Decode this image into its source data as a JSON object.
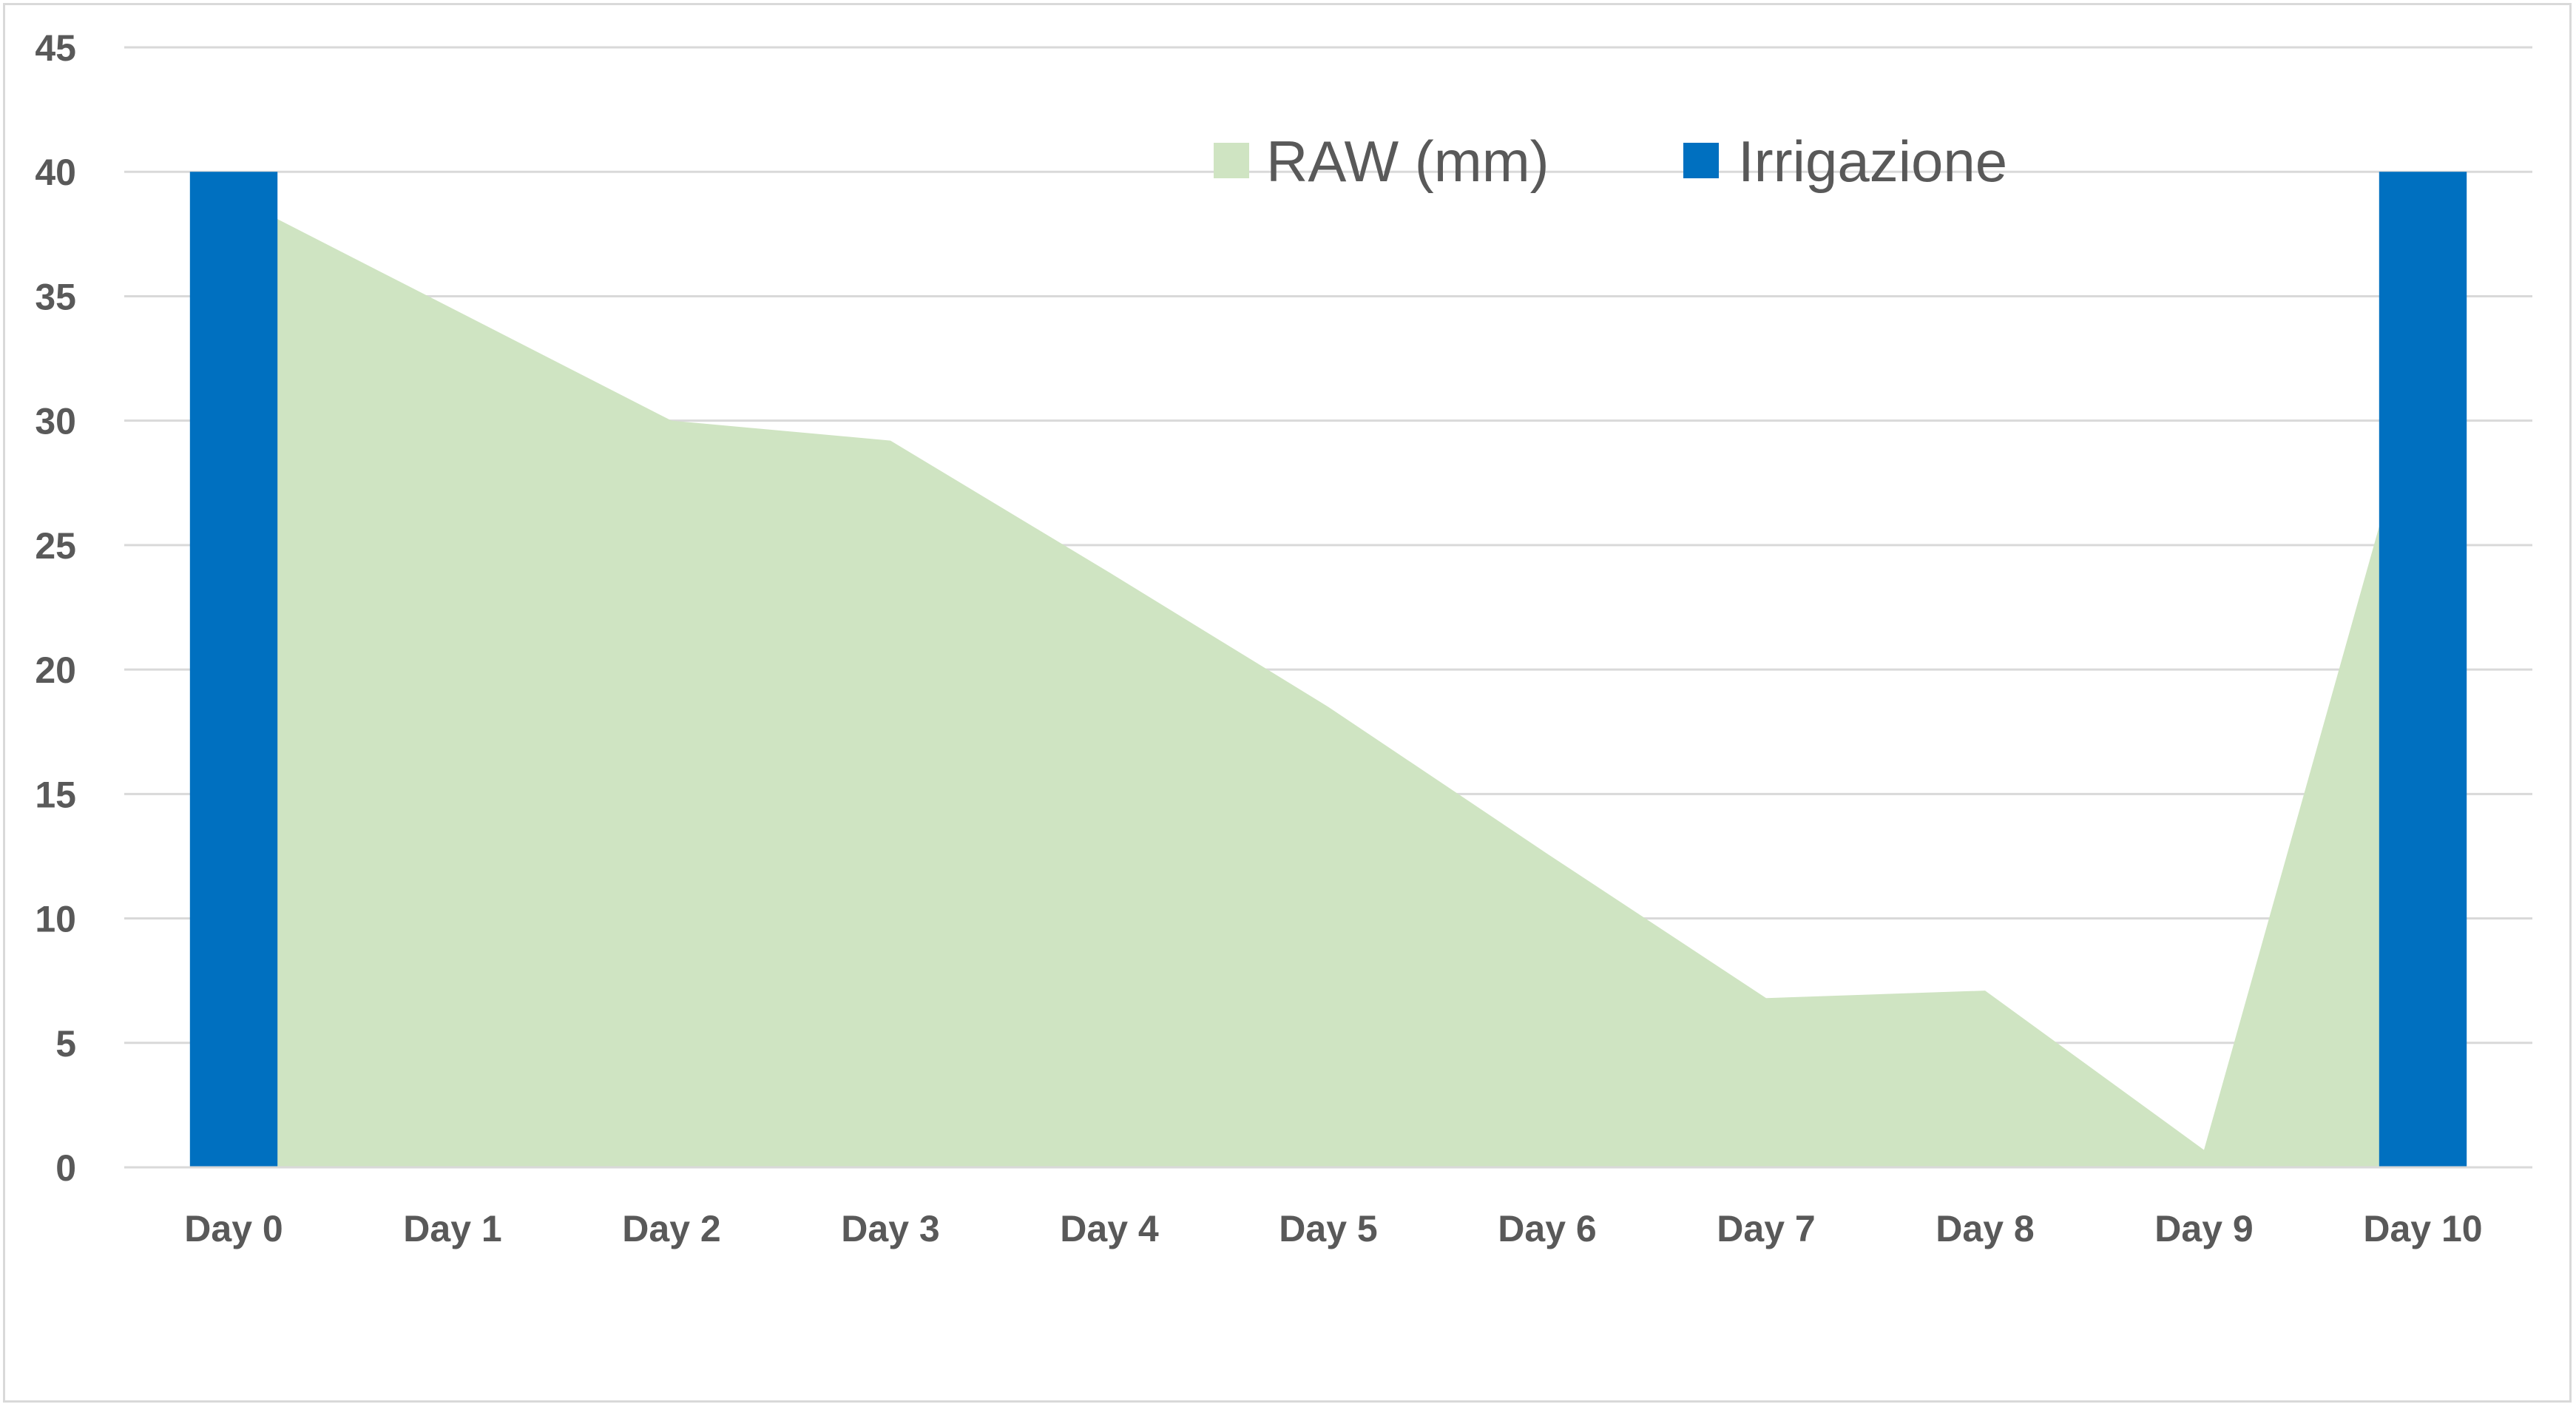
{
  "chart_data": {
    "type": "bar",
    "categories": [
      "Day 0",
      "Day 1",
      "Day 2",
      "Day 3",
      "Day 4",
      "Day 5",
      "Day 6",
      "Day 7",
      "Day 8",
      "Day 9",
      "Day 10"
    ],
    "series": [
      {
        "name": "RAW (mm)",
        "type": "area",
        "color": "#cfe4c2",
        "values": [
          39,
          34.5,
          30,
          29.2,
          23.9,
          18.5,
          12.6,
          6.8,
          7.1,
          0.7,
          32
        ]
      },
      {
        "name": "Irrigazione",
        "type": "bar",
        "color": "#0070c0",
        "values": [
          40,
          0,
          0,
          0,
          0,
          0,
          0,
          0,
          0,
          0,
          40
        ]
      }
    ],
    "ylim": [
      0,
      45
    ],
    "yticks": [
      0,
      5,
      10,
      15,
      20,
      25,
      30,
      35,
      40,
      45
    ],
    "grid": true,
    "legend_position": "top-center",
    "gridline_color": "#d9d9d9",
    "tick_label_color": "#595959"
  }
}
